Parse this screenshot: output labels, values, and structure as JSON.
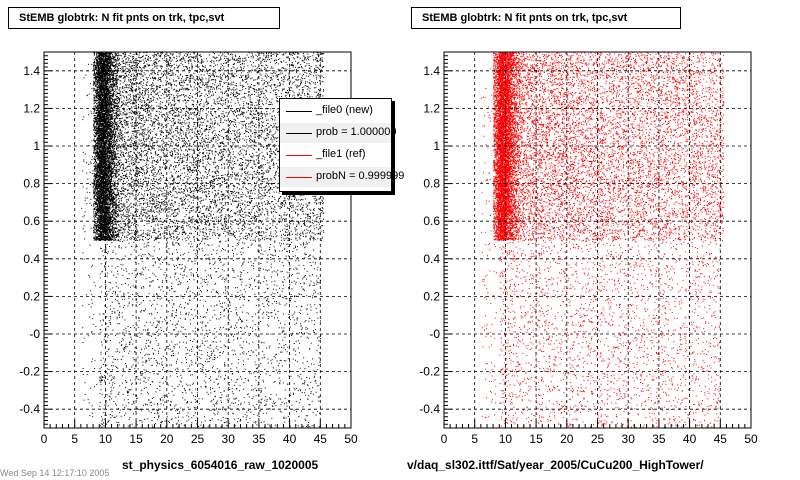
{
  "chart_data": [
    {
      "type": "scatter",
      "title": "StEMB globtrk: N fit pnts on trk, tpc,svt",
      "xlabel": "st_physics_6054016_raw_1020005",
      "ylabel": "",
      "xlim": [
        0,
        50
      ],
      "ylim": [
        -0.5,
        1.5
      ],
      "x_ticks": [
        0,
        5,
        10,
        15,
        20,
        25,
        30,
        35,
        40,
        45,
        50
      ],
      "y_ticks": [
        -0.4,
        -0.2,
        0,
        0.2,
        0.4,
        0.6,
        0.8,
        1.0,
        1.2,
        1.4
      ],
      "y_tick_labels": [
        "-0.4",
        "-0.2",
        "-0",
        "0.2",
        "0.4",
        "0.6",
        "0.8",
        "1",
        "1.2",
        "1.4"
      ],
      "grid": true,
      "marker_color": "#000000",
      "legend_position": "top-right",
      "legend": [
        {
          "label": "_file0 (new)",
          "color": "#000000"
        },
        {
          "label": "prob = 1.000000",
          "color": "#000000"
        },
        {
          "label": "_file1 (ref)",
          "color": "#ff0000"
        },
        {
          "label": "probN = 0.999999",
          "color": "#ff0000"
        }
      ]
    },
    {
      "type": "scatter",
      "title": "StEMB globtrk: N fit pnts on trk, tpc,svt",
      "xlabel": "v/daq_sl302.ittf/Sat/year_2005/CuCu200_HighTower/",
      "ylabel": "",
      "xlim": [
        0,
        50
      ],
      "ylim": [
        -0.5,
        1.5
      ],
      "x_ticks": [
        0,
        5,
        10,
        15,
        20,
        25,
        30,
        35,
        40,
        45,
        50
      ],
      "y_ticks": [
        -0.4,
        -0.2,
        0,
        0.2,
        0.4,
        0.6,
        0.8,
        1.0,
        1.2,
        1.4
      ],
      "y_tick_labels": [
        "-0.4",
        "-0.2",
        "-0",
        "0.2",
        "0.4",
        "0.6",
        "0.8",
        "1",
        "1.2",
        "1.4"
      ],
      "grid": true,
      "marker_color": "#ff0000",
      "legend": []
    }
  ],
  "footer_text": "Wed Sep 14 12:17:10 2005"
}
